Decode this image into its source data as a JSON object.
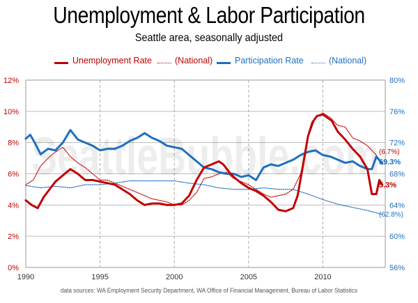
{
  "header": {
    "title": "Unemployment & Labor Participation",
    "subtitle": "Seattle area, seasonally adjusted"
  },
  "legend": {
    "items": [
      {
        "label": "Unemployment Rate",
        "color": "#c00000",
        "style": "solid"
      },
      {
        "label": "(National)",
        "color": "#c00000",
        "style": "dotted"
      },
      {
        "label": "Participation Rate",
        "color": "#1f6fbf",
        "style": "solid"
      },
      {
        "label": "(National)",
        "color": "#1f6fbf",
        "style": "dotted"
      }
    ]
  },
  "watermark": "SeattleBubble.com",
  "source": "data sources: WA Employment Security Department, WA Office of Financial Management, Bureau of Labor Statistics",
  "chart_data": {
    "type": "line",
    "x_ticks": [
      "1990",
      "1995",
      "2000",
      "2005",
      "2010"
    ],
    "xlim": [
      1990,
      2014.2
    ],
    "left_axis": {
      "ticks": [
        "0%",
        "2%",
        "4%",
        "6%",
        "8%",
        "10%",
        "12%"
      ],
      "ylim": [
        0,
        12
      ],
      "color": "#c00000"
    },
    "right_axis": {
      "ticks": [
        "56%",
        "60%",
        "64%",
        "68%",
        "72%",
        "76%",
        "80%"
      ],
      "ylim": [
        56,
        80
      ],
      "color": "#1f6fbf"
    },
    "grid": true,
    "end_labels": {
      "unemployment": "5.3%",
      "unemployment_national": "(6.7%)",
      "participation": "69.3%",
      "participation_national": "(62.8%)"
    },
    "series": [
      {
        "name": "Unemployment Rate",
        "axis": "left",
        "color": "#c00000",
        "style": "solid",
        "x": [
          1990,
          1990.4,
          1990.8,
          1991.2,
          1991.6,
          1992,
          1992.5,
          1993,
          1993.5,
          1994,
          1994.5,
          1995,
          1995.5,
          1996,
          1996.5,
          1997,
          1997.5,
          1998,
          1998.5,
          1999,
          1999.5,
          2000,
          2000.5,
          2001,
          2001.5,
          2002,
          2002.5,
          2003,
          2003.3,
          2003.7,
          2004,
          2004.5,
          2005,
          2005.5,
          2006,
          2006.5,
          2007,
          2007.5,
          2008,
          2008.3,
          2008.6,
          2009,
          2009.3,
          2009.6,
          2010,
          2010.3,
          2010.6,
          2011,
          2011.5,
          2012,
          2012.5,
          2013,
          2013.3,
          2013.6,
          2013.8,
          2014
        ],
        "values": [
          4.3,
          4.0,
          3.8,
          4.5,
          5.0,
          5.5,
          5.9,
          6.3,
          6.0,
          5.6,
          5.6,
          5.5,
          5.4,
          5.3,
          5.0,
          4.7,
          4.3,
          4.0,
          4.1,
          4.1,
          4.0,
          4.0,
          4.1,
          4.6,
          5.6,
          6.4,
          6.6,
          6.8,
          6.6,
          6.1,
          5.8,
          5.4,
          5.1,
          4.9,
          4.6,
          4.2,
          3.7,
          3.6,
          3.8,
          4.6,
          6.2,
          8.4,
          9.3,
          9.7,
          9.8,
          9.6,
          9.4,
          8.7,
          8.2,
          7.6,
          7.1,
          6.3,
          4.7,
          4.7,
          5.6,
          5.3
        ]
      },
      {
        "name": "(National)",
        "axis": "left",
        "color": "#c00000",
        "style": "dotted",
        "x": [
          1990,
          1990.5,
          1991,
          1991.5,
          1992,
          1992.5,
          1993,
          1993.5,
          1994,
          1994.5,
          1995,
          1995.5,
          1996,
          1996.5,
          1997,
          1997.5,
          1998,
          1998.5,
          1999,
          1999.5,
          2000,
          2000.5,
          2001,
          2001.5,
          2002,
          2002.5,
          2003,
          2003.5,
          2004,
          2004.5,
          2005,
          2005.5,
          2006,
          2006.5,
          2007,
          2007.5,
          2008,
          2008.5,
          2009,
          2009.5,
          2010,
          2010.5,
          2011,
          2011.5,
          2012,
          2012.5,
          2013,
          2013.5,
          2014
        ],
        "values": [
          5.3,
          5.6,
          6.5,
          7.0,
          7.4,
          7.7,
          7.1,
          6.7,
          6.4,
          6.0,
          5.6,
          5.6,
          5.4,
          5.2,
          5.0,
          4.8,
          4.6,
          4.4,
          4.3,
          4.2,
          4.0,
          4.0,
          4.3,
          4.8,
          5.7,
          5.8,
          6.0,
          6.1,
          5.7,
          5.5,
          5.3,
          5.0,
          4.7,
          4.5,
          4.6,
          4.7,
          5.0,
          6.0,
          8.3,
          9.6,
          9.9,
          9.6,
          9.1,
          9.0,
          8.3,
          8.1,
          7.8,
          7.3,
          6.7
        ]
      },
      {
        "name": "Participation Rate",
        "axis": "right",
        "color": "#1f6fbf",
        "style": "solid",
        "x": [
          1990,
          1990.3,
          1990.6,
          1991,
          1991.5,
          1992,
          1992.5,
          1993,
          1993.5,
          1994,
          1994.5,
          1995,
          1995.5,
          1996,
          1996.5,
          1997,
          1997.5,
          1998,
          1998.5,
          1999,
          1999.5,
          2000,
          2000.5,
          2001,
          2001.5,
          2002,
          2002.5,
          2003,
          2003.5,
          2004,
          2004.5,
          2005,
          2005.5,
          2006,
          2006.5,
          2007,
          2007.5,
          2008,
          2008.5,
          2009,
          2009.5,
          2010,
          2010.5,
          2011,
          2011.5,
          2012,
          2012.5,
          2013,
          2013.3,
          2013.6,
          2014
        ],
        "values": [
          72.5,
          73.0,
          72.0,
          70.5,
          71.2,
          71.0,
          72.0,
          73.6,
          72.4,
          72.0,
          71.6,
          71.0,
          71.2,
          71.2,
          71.6,
          72.2,
          72.6,
          73.2,
          72.6,
          72.2,
          71.6,
          71.4,
          71.2,
          70.4,
          69.6,
          68.8,
          68.6,
          68.2,
          68.0,
          68.0,
          67.6,
          67.8,
          67.2,
          68.8,
          69.2,
          69.0,
          69.4,
          69.8,
          70.4,
          70.8,
          71.0,
          70.4,
          70.2,
          69.8,
          69.4,
          69.6,
          69.0,
          68.6,
          68.6,
          70.2,
          69.3
        ]
      },
      {
        "name": "(National)",
        "axis": "right",
        "color": "#1f6fbf",
        "style": "dotted",
        "x": [
          1990,
          1991,
          1992,
          1993,
          1994,
          1995,
          1996,
          1997,
          1998,
          1999,
          2000,
          2001,
          2002,
          2003,
          2004,
          2005,
          2006,
          2007,
          2008,
          2009,
          2010,
          2011,
          2012,
          2013,
          2014
        ],
        "values": [
          66.5,
          66.2,
          66.4,
          66.2,
          66.6,
          66.6,
          66.8,
          67.1,
          67.1,
          67.1,
          67.1,
          66.8,
          66.6,
          66.2,
          66.0,
          66.0,
          66.2,
          66.0,
          66.0,
          65.4,
          64.7,
          64.1,
          63.7,
          63.3,
          62.8
        ]
      }
    ]
  }
}
